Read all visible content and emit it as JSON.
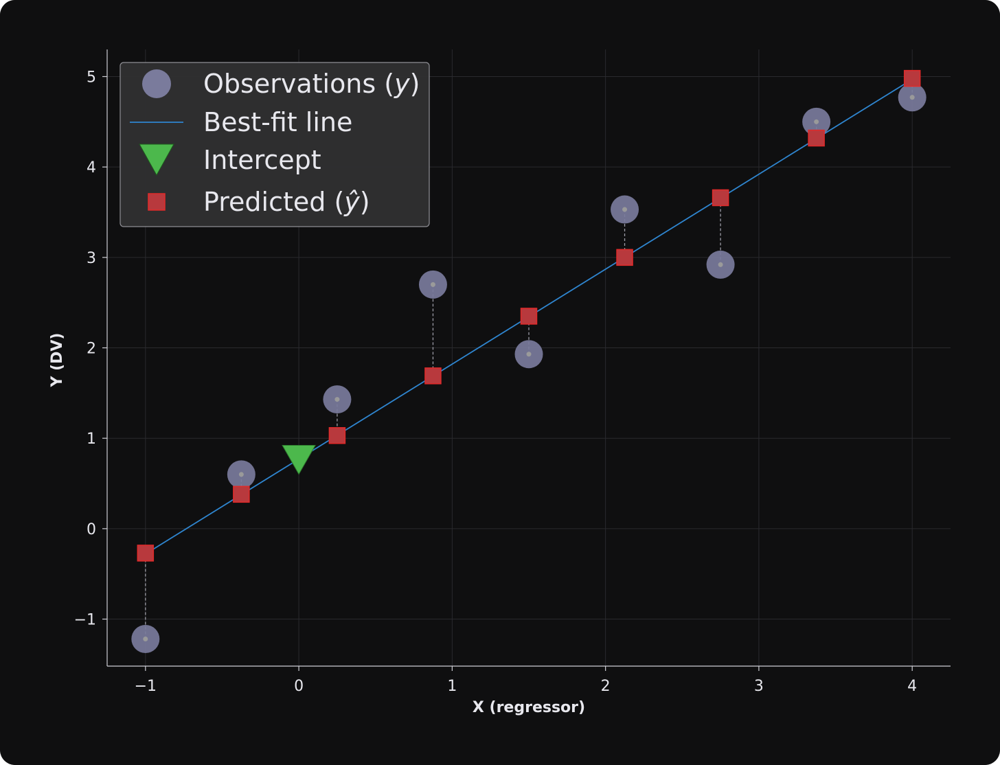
{
  "chart_data": {
    "type": "scatter",
    "xlabel": "X (regressor)",
    "ylabel": "Y (DV)",
    "xlim": [
      -1.25,
      4.25
    ],
    "ylim": [
      -1.52,
      5.3
    ],
    "xticks": [
      -1,
      0,
      1,
      2,
      3,
      4
    ],
    "yticks": [
      -1,
      0,
      1,
      2,
      3,
      4,
      5
    ],
    "xtick_labels": [
      "−1",
      "0",
      "1",
      "2",
      "3",
      "4"
    ],
    "ytick_labels": [
      "−1",
      "0",
      "1",
      "2",
      "3",
      "4",
      "5"
    ],
    "grid": true,
    "legend_position": "top-left",
    "legend": [
      {
        "key": "observations",
        "text": "Observations (",
        "math": "y",
        "suffix": ")"
      },
      {
        "key": "fit",
        "text": "Best-fit line",
        "math": "",
        "suffix": ""
      },
      {
        "key": "intercept",
        "text": "Intercept",
        "math": "",
        "suffix": ""
      },
      {
        "key": "predicted",
        "text": "Predicted (",
        "math": "ŷ",
        "suffix": ")"
      }
    ],
    "line": {
      "intercept": 0.77,
      "slope": 1.05
    },
    "intercept_point": {
      "x": 0,
      "y": 0.77
    },
    "observations": [
      {
        "x": -1.0,
        "y": -1.22
      },
      {
        "x": -0.375,
        "y": 0.6
      },
      {
        "x": 0.25,
        "y": 1.43
      },
      {
        "x": 0.875,
        "y": 2.7
      },
      {
        "x": 1.5,
        "y": 1.93
      },
      {
        "x": 2.125,
        "y": 3.53
      },
      {
        "x": 2.75,
        "y": 2.92
      },
      {
        "x": 3.375,
        "y": 4.5
      },
      {
        "x": 4.0,
        "y": 4.77
      }
    ],
    "predicted": [
      {
        "x": -1.0,
        "y": -0.27
      },
      {
        "x": -0.375,
        "y": 0.38
      },
      {
        "x": 0.25,
        "y": 1.03
      },
      {
        "x": 0.875,
        "y": 1.69
      },
      {
        "x": 1.5,
        "y": 2.35
      },
      {
        "x": 2.125,
        "y": 3.0
      },
      {
        "x": 2.75,
        "y": 3.66
      },
      {
        "x": 3.375,
        "y": 4.32
      },
      {
        "x": 4.0,
        "y": 4.98
      }
    ],
    "colors": {
      "background": "#0f0f10",
      "grid": "#2a2a2e",
      "axis": "#cfcfd6",
      "observation": "#7a7b9c",
      "observation_center": "#9a9a9a",
      "fit_line": "#2f86d0",
      "intercept": "#4cb84c",
      "predicted_fill": "#b8393d",
      "predicted_edge": "#e02a2a",
      "residual": "#9c9ca6",
      "legend_bg": "#303031",
      "legend_edge": "#8f8f95"
    }
  }
}
